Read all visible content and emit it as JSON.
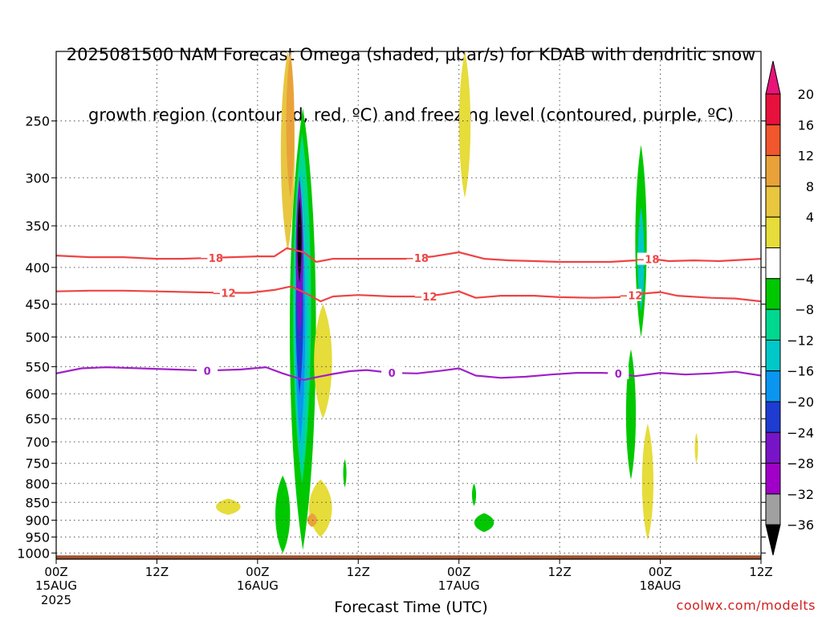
{
  "title": {
    "line1": "2025081500 NAM Forecast Omega (shaded, μbar/s) for KDAB with dendritic snow",
    "line2": "growth region (contoured, red, ºC) and freezing level (contoured, purple, ºC)"
  },
  "xlabel": "Forecast Time (UTC)",
  "credit": "coolwx.com/modelts",
  "chart_data": {
    "type": "heatmap",
    "y_axis": {
      "label": "",
      "scale": "log-pressure",
      "inverted": true,
      "ticks": [
        250,
        300,
        350,
        400,
        450,
        500,
        550,
        600,
        650,
        700,
        750,
        800,
        850,
        900,
        950,
        1000
      ],
      "range": [
        1020,
        200
      ]
    },
    "x_axis": {
      "unit": "hours",
      "range": [
        0,
        84
      ],
      "ticks": [
        {
          "hour": 0,
          "label": "00Z",
          "sub": "15AUG",
          "sub2": "2025"
        },
        {
          "hour": 12,
          "label": "12Z",
          "sub": "",
          "sub2": ""
        },
        {
          "hour": 24,
          "label": "00Z",
          "sub": "16AUG",
          "sub2": ""
        },
        {
          "hour": 36,
          "label": "12Z",
          "sub": "",
          "sub2": ""
        },
        {
          "hour": 48,
          "label": "00Z",
          "sub": "17AUG",
          "sub2": ""
        },
        {
          "hour": 60,
          "label": "12Z",
          "sub": "",
          "sub2": ""
        },
        {
          "hour": 72,
          "label": "00Z",
          "sub": "18AUG",
          "sub2": ""
        },
        {
          "hour": 84,
          "label": "12Z",
          "sub": "",
          "sub2": ""
        }
      ]
    },
    "grid": true,
    "colorbar": {
      "labels": [
        "20",
        "16",
        "12",
        "8",
        "4",
        "-4",
        "-8",
        "-12",
        "-16",
        "-20",
        "-24",
        "-28",
        "-32",
        "-36"
      ],
      "colors": [
        "#e8103c",
        "#f2562c",
        "#e9a23a",
        "#e8c640",
        "#e6dc3a",
        "#ffffff",
        "#00c800",
        "#00d890",
        "#00c8c8",
        "#0a96f0",
        "#1e3cd2",
        "#7814c8",
        "#a000c8",
        "#a0a0a0"
      ],
      "top_color": "#e8147a",
      "bottom_color": "#000000"
    },
    "contours": [
      {
        "name": "-18",
        "color": "#ee4444",
        "labels_at": [
          18.5,
          43,
          70.5
        ],
        "points": [
          [
            0,
            385
          ],
          [
            4,
            387
          ],
          [
            8,
            387
          ],
          [
            12,
            389
          ],
          [
            15,
            389
          ],
          [
            18,
            388
          ],
          [
            21,
            387
          ],
          [
            24,
            386
          ],
          [
            26,
            386
          ],
          [
            27.5,
            376
          ],
          [
            29.5,
            381
          ],
          [
            31,
            393
          ],
          [
            33,
            389
          ],
          [
            36,
            389
          ],
          [
            39,
            389
          ],
          [
            42,
            389
          ],
          [
            45,
            386
          ],
          [
            48,
            381
          ],
          [
            51,
            389
          ],
          [
            54,
            391
          ],
          [
            57,
            392
          ],
          [
            60,
            393
          ],
          [
            63,
            393
          ],
          [
            66,
            393
          ],
          [
            69,
            391
          ],
          [
            71,
            389
          ],
          [
            73,
            392
          ],
          [
            76,
            391
          ],
          [
            79,
            392
          ],
          [
            84,
            389
          ]
        ]
      },
      {
        "name": "-12",
        "color": "#ee4444",
        "labels_at": [
          20,
          44,
          68.5
        ],
        "points": [
          [
            0,
            432
          ],
          [
            4,
            431
          ],
          [
            8,
            431
          ],
          [
            12,
            432
          ],
          [
            16,
            433
          ],
          [
            20,
            434
          ],
          [
            23,
            434
          ],
          [
            26,
            430
          ],
          [
            28,
            425
          ],
          [
            30,
            436
          ],
          [
            31.5,
            446
          ],
          [
            33,
            439
          ],
          [
            36,
            437
          ],
          [
            40,
            439
          ],
          [
            44,
            439
          ],
          [
            46,
            436
          ],
          [
            48,
            432
          ],
          [
            50,
            441
          ],
          [
            53,
            438
          ],
          [
            57,
            438
          ],
          [
            60,
            440
          ],
          [
            64,
            441
          ],
          [
            67,
            440
          ],
          [
            70,
            435
          ],
          [
            72,
            433
          ],
          [
            74,
            438
          ],
          [
            78,
            441
          ],
          [
            81,
            442
          ],
          [
            84,
            446
          ]
        ]
      },
      {
        "name": "0",
        "color": "#a020c8",
        "labels_at": [
          18,
          40,
          67
        ],
        "points": [
          [
            0,
            562
          ],
          [
            3,
            553
          ],
          [
            6,
            551
          ],
          [
            8,
            552
          ],
          [
            10,
            553
          ],
          [
            14,
            555
          ],
          [
            18,
            557
          ],
          [
            22,
            555
          ],
          [
            25,
            551
          ],
          [
            27,
            562
          ],
          [
            29.5,
            574
          ],
          [
            31,
            569
          ],
          [
            33,
            563
          ],
          [
            35,
            558
          ],
          [
            37,
            556
          ],
          [
            40,
            561
          ],
          [
            43,
            562
          ],
          [
            46,
            557
          ],
          [
            48,
            553
          ],
          [
            50,
            566
          ],
          [
            53,
            570
          ],
          [
            56,
            568
          ],
          [
            59,
            564
          ],
          [
            62,
            561
          ],
          [
            65,
            561
          ],
          [
            67,
            562
          ],
          [
            69,
            567
          ],
          [
            72,
            561
          ],
          [
            75,
            564
          ],
          [
            78,
            562
          ],
          [
            81,
            559
          ],
          [
            84,
            566
          ]
        ]
      }
    ],
    "shading": [
      {
        "level": "8",
        "color": "#e8c640",
        "x": 27.6,
        "ytop": 200,
        "ybot": 380,
        "w": 1.7
      },
      {
        "level": "12",
        "color": "#e9a23a",
        "x": 27.9,
        "ytop": 200,
        "ybot": 320,
        "w": 1.0
      },
      {
        "level": "-8",
        "color": "#00c800",
        "x": 29.4,
        "ytop": 240,
        "ybot": 990,
        "w": 3.2
      },
      {
        "level": "-12",
        "color": "#00d890",
        "x": 29.3,
        "ytop": 260,
        "ybot": 800,
        "w": 2.2
      },
      {
        "level": "-16",
        "color": "#00c8c8",
        "x": 29.2,
        "ytop": 290,
        "ybot": 760,
        "w": 1.6
      },
      {
        "level": "-20",
        "color": "#0a96f0",
        "x": 29.1,
        "ytop": 320,
        "ybot": 700,
        "w": 1.2
      },
      {
        "level": "-24",
        "color": "#1e3cd2",
        "x": 29.0,
        "ytop": 350,
        "ybot": 600,
        "w": 0.9
      },
      {
        "level": "-28",
        "color": "#7814c8",
        "x": 29.0,
        "ytop": 300,
        "ybot": 500,
        "w": 0.9
      },
      {
        "level": "-36",
        "color": "#000000",
        "x": 29.0,
        "ytop": 320,
        "ybot": 420,
        "w": 0.5
      },
      {
        "level": "-8",
        "color": "#00c800",
        "x": 27.0,
        "ytop": 780,
        "ybot": 1000,
        "w": 1.8
      },
      {
        "level": "4",
        "color": "#e6dc3a",
        "x": 31.8,
        "ytop": 450,
        "ybot": 650,
        "w": 2.2
      },
      {
        "level": "4",
        "color": "#e6dc3a",
        "x": 31.5,
        "ytop": 790,
        "ybot": 950,
        "w": 2.8
      },
      {
        "level": "8",
        "color": "#e9a23a",
        "x": 30.5,
        "ytop": 880,
        "ybot": 920,
        "w": 1.2
      },
      {
        "level": "4",
        "color": "#e6dc3a",
        "x": 20.5,
        "ytop": 840,
        "ybot": 885,
        "w": 3.0
      },
      {
        "level": "-8",
        "color": "#00c800",
        "x": 34.4,
        "ytop": 740,
        "ybot": 810,
        "w": 0.4
      },
      {
        "level": "4",
        "color": "#e6dc3a",
        "x": 48.7,
        "ytop": 200,
        "ybot": 320,
        "w": 1.4
      },
      {
        "level": "-8",
        "color": "#00c800",
        "x": 49.8,
        "ytop": 800,
        "ybot": 860,
        "w": 0.5
      },
      {
        "level": "-8",
        "color": "#00c800",
        "x": 51.0,
        "ytop": 880,
        "ybot": 935,
        "w": 2.4
      },
      {
        "level": "-8",
        "color": "#00c800",
        "x": 69.7,
        "ytop": 270,
        "ybot": 500,
        "w": 1.4
      },
      {
        "level": "-16",
        "color": "#00c8c8",
        "x": 69.7,
        "ytop": 330,
        "ybot": 460,
        "w": 0.8
      },
      {
        "level": "-8",
        "color": "#00c800",
        "x": 68.5,
        "ytop": 520,
        "ybot": 790,
        "w": 1.2
      },
      {
        "level": "4",
        "color": "#e6dc3a",
        "x": 70.5,
        "ytop": 660,
        "ybot": 960,
        "w": 1.4
      },
      {
        "level": "4",
        "color": "#e6dc3a",
        "x": 76.3,
        "ytop": 680,
        "ybot": 750,
        "w": 0.4
      }
    ],
    "ground": {
      "color": "#a0522d",
      "above_p": 1000
    }
  }
}
